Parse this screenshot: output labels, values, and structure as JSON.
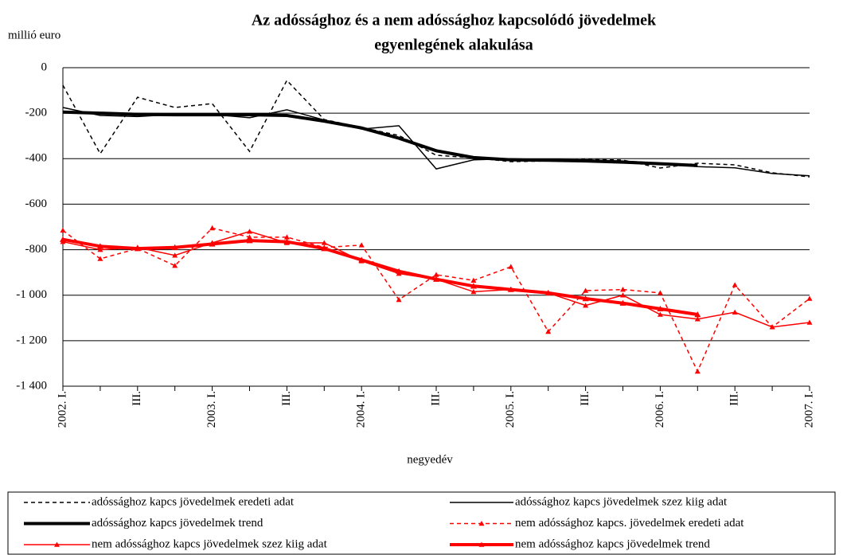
{
  "chart_data": {
    "type": "line",
    "title": [
      "Az adóssághoz  és a nem adóssághoz kapcsolódó jövedelmek",
      "egyenlegének alakulása"
    ],
    "y_label": "millió euro",
    "x_label": "negyedév",
    "categories": [
      "2002. I.",
      null,
      "III.",
      null,
      "2003. I.",
      null,
      "III.",
      null,
      "2004. I.",
      null,
      "III.",
      null,
      "2005. I.",
      null,
      "III.",
      null,
      "2006. I.",
      null,
      "III.",
      null,
      "2007. I."
    ],
    "ylim": [
      -1400,
      0
    ],
    "yticks": [
      0,
      -200,
      -400,
      -600,
      -800,
      {
        "value": -1000,
        "label": "-1 000"
      },
      {
        "value": -1200,
        "label": "-1 200"
      },
      {
        "value": -1400,
        "label": "-1 400"
      }
    ],
    "grid": true,
    "series": [
      {
        "name": "adóssághoz kapcs jövedelmek eredeti adat",
        "color": "#000000",
        "line_style": "dotted",
        "line_weight": "thin",
        "marker": "none",
        "values": [
          -77,
          -378,
          -130,
          -175,
          -158,
          -368,
          -56,
          -228,
          -263,
          -298,
          -385,
          -396,
          -413,
          -410,
          -403,
          -406,
          -441,
          -420,
          -427,
          -462,
          -480
        ]
      },
      {
        "name": "adóssághoz kapcs jövedelmek  szez kiig adat",
        "color": "#000000",
        "line_style": "solid",
        "line_weight": "thin",
        "marker": "none",
        "values": [
          -175,
          -210,
          -215,
          -205,
          -205,
          -220,
          -185,
          -230,
          -270,
          -255,
          -445,
          -405,
          -400,
          -405,
          -405,
          -410,
          -420,
          -435,
          -440,
          -465,
          -475
        ]
      },
      {
        "name": "adóssághoz kapcs jövedelmek  trend",
        "color": "#000000",
        "line_style": "solid",
        "line_weight": "thick",
        "marker": "none",
        "values": [
          -195,
          -200,
          -205,
          -207,
          -207,
          -207,
          -210,
          -235,
          -265,
          -310,
          -365,
          -395,
          -405,
          -407,
          -410,
          -415,
          -422,
          -430,
          null,
          null,
          null
        ]
      },
      {
        "name": "nem adóssághoz kapcs. jövedelmek  eredeti adat",
        "color": "#ff0000",
        "line_style": "dotted",
        "line_weight": "thin",
        "marker": "triangle",
        "values": [
          -715,
          -840,
          -795,
          -870,
          -705,
          -745,
          -745,
          -790,
          -780,
          -1020,
          -910,
          -935,
          -875,
          -1160,
          -980,
          -975,
          -990,
          -1335,
          -955,
          -1140,
          -1015
        ]
      },
      {
        "name": "nem adóssághoz kapcs jövedelmek szez kiig adat",
        "color": "#ff0000",
        "line_style": "solid",
        "line_weight": "thin",
        "marker": "triangle",
        "values": [
          -765,
          -800,
          -790,
          -825,
          -770,
          -720,
          -770,
          -770,
          -850,
          -905,
          -930,
          -985,
          -975,
          -990,
          -1045,
          -1000,
          -1085,
          -1105,
          -1075,
          -1140,
          -1120
        ]
      },
      {
        "name": "nem adóssághoz kapcs jövedelmek  trend",
        "color": "#ff0000",
        "line_style": "solid",
        "line_weight": "thick",
        "marker": "triangle",
        "values": [
          -755,
          -785,
          -795,
          -790,
          -775,
          -760,
          -765,
          -795,
          -845,
          -895,
          -930,
          -960,
          -975,
          -990,
          -1015,
          -1035,
          -1060,
          -1085,
          null,
          null,
          null
        ]
      }
    ]
  }
}
